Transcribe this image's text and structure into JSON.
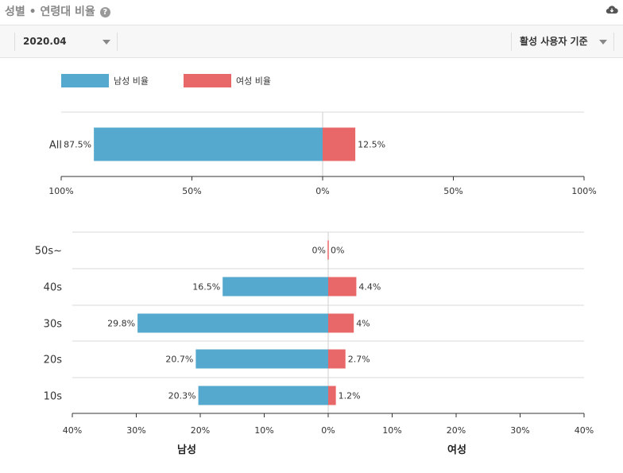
{
  "header": {
    "title": "성별 • 연령대 비율",
    "help_icon": "question-circle-icon",
    "download_icon": "cloud-download-icon"
  },
  "toolbar": {
    "date_value": "2020.04",
    "mode_value": "활성 사용자 기준"
  },
  "colors": {
    "male": "#55a9ce",
    "female": "#e8686a"
  },
  "chart_data": [
    {
      "type": "bar",
      "orientation": "horizontal-diverging",
      "categories": [
        "All"
      ],
      "legend": [
        "남성 비율",
        "여성 비율"
      ],
      "series": [
        {
          "name": "남성 비율",
          "values": [
            87.5
          ]
        },
        {
          "name": "여성 비율",
          "values": [
            12.5
          ]
        }
      ],
      "value_labels": {
        "male": [
          "87.5%"
        ],
        "female": [
          "12.5%"
        ]
      },
      "xlim": [
        -100,
        100
      ],
      "xticks": [
        "100%",
        "50%",
        "0%",
        "50%",
        "100%"
      ]
    },
    {
      "type": "bar",
      "orientation": "horizontal-diverging",
      "categories": [
        "50s~",
        "40s",
        "30s",
        "20s",
        "10s"
      ],
      "series": [
        {
          "name": "남성",
          "values": [
            0,
            16.5,
            29.8,
            20.7,
            20.3
          ]
        },
        {
          "name": "여성",
          "values": [
            0,
            4.4,
            4,
            2.7,
            1.2
          ]
        }
      ],
      "value_labels": {
        "male": [
          "0%",
          "16.5%",
          "29.8%",
          "20.7%",
          "20.3%"
        ],
        "female": [
          "0%",
          "4.4%",
          "4%",
          "2.7%",
          "1.2%"
        ]
      },
      "xlim": [
        -40,
        40
      ],
      "xticks": [
        "40%",
        "30%",
        "20%",
        "10%",
        "0%",
        "10%",
        "20%",
        "30%",
        "40%"
      ],
      "side_labels": [
        "남성",
        "여성"
      ]
    }
  ]
}
